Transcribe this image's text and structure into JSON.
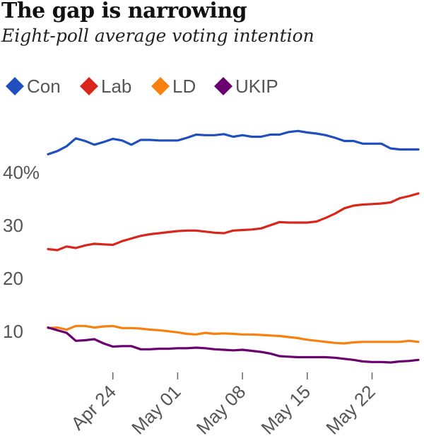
{
  "header": {
    "title": "The gap is narrowing",
    "subtitle": "Eight-poll average voting intention"
  },
  "chart_data": {
    "type": "line",
    "x_dates": [
      "2015-04-17",
      "2015-04-18",
      "2015-04-19",
      "2015-04-20",
      "2015-04-21",
      "2015-04-22",
      "2015-04-23",
      "2015-04-24",
      "2015-04-25",
      "2015-04-26",
      "2015-04-27",
      "2015-04-28",
      "2015-04-29",
      "2015-04-30",
      "2015-05-01",
      "2015-05-02",
      "2015-05-03",
      "2015-05-04",
      "2015-05-05",
      "2015-05-06",
      "2015-05-07",
      "2015-05-08",
      "2015-05-09",
      "2015-05-10",
      "2015-05-11",
      "2015-05-12",
      "2015-05-13",
      "2015-05-14",
      "2015-05-15",
      "2015-05-16",
      "2015-05-17",
      "2015-05-18",
      "2015-05-19",
      "2015-05-20",
      "2015-05-21",
      "2015-05-22",
      "2015-05-23",
      "2015-05-24",
      "2015-05-25",
      "2015-05-26",
      "2015-05-27"
    ],
    "series": [
      {
        "name": "Con",
        "color": "#1f4fbf",
        "values": [
          43.3,
          43.9,
          44.8,
          46.3,
          45.8,
          45.1,
          45.6,
          46.2,
          45.9,
          45.1,
          46.0,
          46.0,
          45.9,
          45.9,
          45.9,
          46.4,
          47.0,
          46.9,
          46.9,
          47.1,
          46.6,
          46.9,
          46.6,
          46.6,
          47.0,
          47.0,
          47.5,
          47.7,
          47.4,
          47.2,
          46.9,
          46.4,
          45.8,
          45.8,
          45.3,
          45.3,
          45.3,
          44.4,
          44.2,
          44.2,
          44.2
        ]
      },
      {
        "name": "Lab",
        "color": "#d9261c",
        "values": [
          25.4,
          25.2,
          25.9,
          25.6,
          26.1,
          26.4,
          26.3,
          26.2,
          26.9,
          27.4,
          27.9,
          28.2,
          28.4,
          28.6,
          28.8,
          28.9,
          28.9,
          28.7,
          28.5,
          28.4,
          28.9,
          29.0,
          29.1,
          29.3,
          29.9,
          30.5,
          30.4,
          30.4,
          30.4,
          30.6,
          31.3,
          32.1,
          33.1,
          33.6,
          33.8,
          33.9,
          34.0,
          34.2,
          35.0,
          35.4,
          35.9
        ]
      },
      {
        "name": "LD",
        "color": "#f7800f",
        "values": [
          10.5,
          10.6,
          10.2,
          10.9,
          10.9,
          10.6,
          10.8,
          10.9,
          10.5,
          10.5,
          10.4,
          10.2,
          10.1,
          9.9,
          9.7,
          9.4,
          9.3,
          9.6,
          9.4,
          9.5,
          9.4,
          9.3,
          9.3,
          9.2,
          9.1,
          9.0,
          8.8,
          8.6,
          8.3,
          8.1,
          7.9,
          7.7,
          7.6,
          7.8,
          7.9,
          7.9,
          7.9,
          7.9,
          7.9,
          8.1,
          7.9
        ]
      },
      {
        "name": "UKIP",
        "color": "#6a006f",
        "values": [
          10.6,
          10.1,
          9.6,
          8.1,
          8.2,
          8.4,
          7.6,
          7.0,
          7.1,
          7.1,
          6.5,
          6.5,
          6.6,
          6.6,
          6.7,
          6.7,
          6.8,
          6.7,
          6.5,
          6.4,
          6.3,
          6.4,
          6.2,
          6.0,
          5.7,
          5.2,
          5.1,
          5.0,
          5.0,
          5.0,
          5.0,
          4.9,
          4.7,
          4.5,
          4.2,
          4.1,
          4.1,
          4.0,
          4.2,
          4.3,
          4.5
        ]
      }
    ],
    "y_ticks": [
      {
        "value": 10,
        "label": "10"
      },
      {
        "value": 20,
        "label": "20"
      },
      {
        "value": 30,
        "label": "30"
      },
      {
        "value": 40,
        "label": "40%"
      }
    ],
    "x_ticks": [
      {
        "date": "2015-04-24",
        "label": "Apr 24"
      },
      {
        "date": "2015-05-01",
        "label": "May 01"
      },
      {
        "date": "2015-05-08",
        "label": "May 08"
      },
      {
        "date": "2015-05-15",
        "label": "May 15"
      },
      {
        "date": "2015-05-22",
        "label": "May 22"
      }
    ],
    "ylim": [
      0,
      48
    ],
    "grid": false,
    "legend_position": "top-left"
  }
}
